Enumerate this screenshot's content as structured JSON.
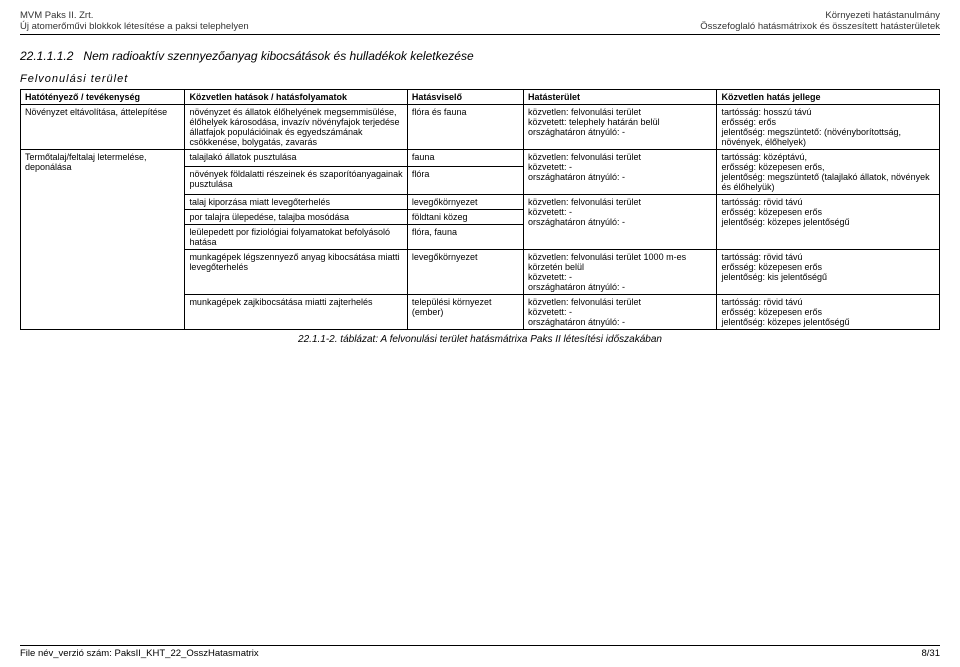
{
  "header": {
    "leftLine1": "MVM Paks II. Zrt.",
    "leftLine2": "Új atomerőművi blokkok létesítése a paksi telephelyen",
    "rightLine1": "Környezeti hatástanulmány",
    "rightLine2": "Összefoglaló hatásmátrixok és összesített hatásterületek"
  },
  "sectionNumber": "22.1.1.1.2",
  "sectionTitle": "Nem radioaktív szennyezőanyag kibocsátások és hulladékok keletkezése",
  "subtitle": "Felvonulási terület",
  "cols": {
    "c1": "Hatótényező / tevékenység",
    "c2": "Közvetlen hatások / hatásfolyamatok",
    "c3": "Hatásviselő",
    "c4": "Hatásterület",
    "c5": "Közvetlen hatás jellege"
  },
  "rows": [
    {
      "c1": "Növényzet eltávolítása, áttelepítése",
      "c1span": 1,
      "c2": "növényzet és állatok élőhelyének megsemmisülése, élőhelyek károsodása, invazív növényfajok terjedése\nállatfajok populációinak és egyedszámának csökkenése, bolygatás, zavarás",
      "c3": "flóra és fauna",
      "c4": "közvetlen: felvonulási terület\nközvetett: telephely határán belül\nországhatáron átnyúló: -",
      "c5": "tartósság: hosszú távú\nerősség: erős\njelentőség: megszüntető: (növényborítottság, növények, élőhelyek)"
    },
    {
      "c1": "Termőtalaj/feltalaj letermelése, deponálása",
      "c1span": 7,
      "c2": "talajlakó állatok pusztulása",
      "c3": "fauna",
      "c4": "közvetlen: felvonulási terület\nközvetett: -\nországhatáron átnyúló: -",
      "c4span": 2,
      "c5": "tartósság: középtávú,\nerősség: közepesen erős,\njelentőség: megszüntető (talajlakó állatok, növények és élőhelyük)",
      "c5span": 2
    },
    {
      "c2": "növények földalatti részeinek és szaporítóanyagainak pusztulása",
      "c3": "flóra"
    },
    {
      "c2": "talaj kiporzása miatt levegőterhelés",
      "c3": "levegőkörnyezet",
      "c4": "közvetlen: felvonulási terület\nközvetett: -\nországhatáron átnyúló: -",
      "c4span": 3,
      "c5": "tartósság: rövid távú\nerősség: közepesen erős\njelentőség: közepes jelentőségű",
      "c5span": 3
    },
    {
      "c2": "por talajra ülepedése, talajba mosódása",
      "c3": "földtani közeg"
    },
    {
      "c2": "leülepedett por fiziológiai folyamatokat befolyásoló hatása",
      "c3": "flóra, fauna"
    },
    {
      "c2": "munkagépek légszennyező anyag kibocsátása miatti levegőterhelés",
      "c3": "levegőkörnyezet",
      "c4": "közvetlen: felvonulási terület 1000 m-es körzetén belül\nközvetett: -\nországhatáron átnyúló: -",
      "c5": "tartósság: rövid távú\nerősség: közepesen erős\njelentőség: kis jelentőségű"
    },
    {
      "c2": "munkagépek zajkibocsátása miatti zajterhelés",
      "c3": "települési környezet (ember)",
      "c4": "közvetlen: felvonulási terület\nközvetett: -\nországhatáron átnyúló: -",
      "c5": "tartósság: rövid távú\nerősség: közepesen erős\njelentőség: közepes jelentőségű"
    }
  ],
  "caption": "22.1.1-2. táblázat: A felvonulási terület hatásmátrixa Paks II létesítési időszakában",
  "footer": {
    "left": "File név_verzió szám: PaksII_KHT_22_OsszHatasmatrix",
    "right": "8/31"
  }
}
